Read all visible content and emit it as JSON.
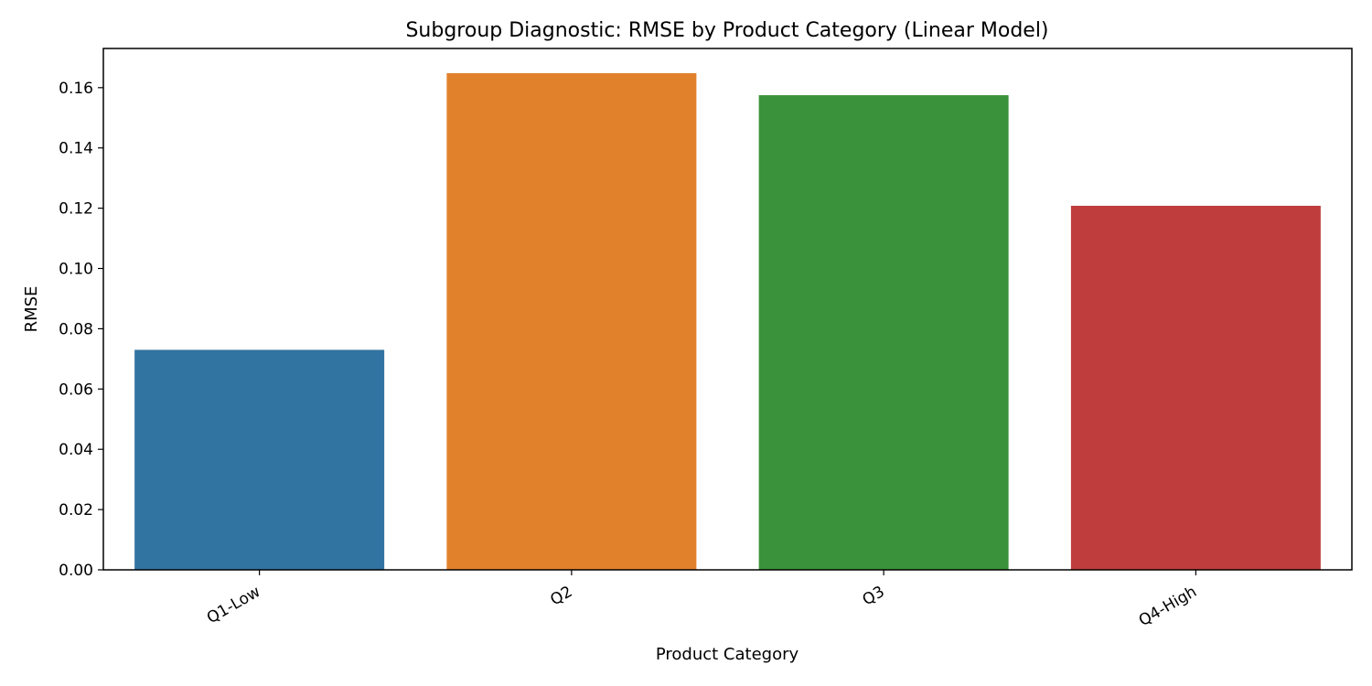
{
  "chart_data": {
    "type": "bar",
    "title": "Subgroup Diagnostic: RMSE by Product Category (Linear Model)",
    "xlabel": "Product Category",
    "ylabel": "RMSE",
    "categories": [
      "Q1-Low",
      "Q2",
      "Q3",
      "Q4-High"
    ],
    "values": [
      0.073,
      0.1648,
      0.1575,
      0.1208
    ],
    "colors": [
      "#3274a1",
      "#e1812c",
      "#3a923a",
      "#c03d3e"
    ],
    "ylim": [
      0,
      0.173
    ],
    "yticks": [
      "0.00",
      "0.02",
      "0.04",
      "0.06",
      "0.08",
      "0.10",
      "0.12",
      "0.14",
      "0.16"
    ],
    "grid": false,
    "legend": false
  }
}
